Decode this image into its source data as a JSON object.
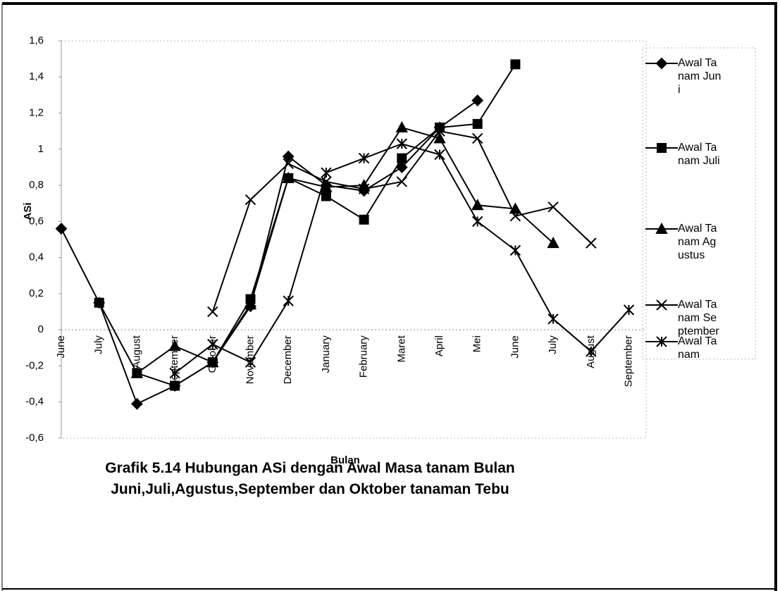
{
  "chart_data": {
    "type": "line",
    "y_label": "ASi",
    "x_label": "Bulan",
    "caption": "Grafik 5.14 Hubungan ASi dengan Awal Masa tanam Bulan Juni,Juli,Agustus,September dan Oktober tanaman Tebu",
    "categories": [
      "June",
      "July",
      "August",
      "September",
      "October",
      "November",
      "December",
      "January",
      "February",
      "Maret",
      "April",
      "Mei",
      "June",
      "July",
      "August",
      "September"
    ],
    "series": [
      {
        "name": "Awal Tanam Juni",
        "color": "#000000",
        "marker": "diamond",
        "values": [
          0.56,
          0.15,
          -0.41,
          -0.31,
          -0.18,
          0.13,
          0.96,
          0.8,
          0.77,
          0.9,
          1.12,
          1.27,
          null,
          null,
          null,
          null
        ]
      },
      {
        "name": "Awal Tanam Juli",
        "color": "#000000",
        "marker": "square",
        "values": [
          null,
          0.15,
          -0.24,
          -0.31,
          -0.18,
          0.17,
          0.84,
          0.74,
          0.61,
          0.95,
          1.12,
          1.14,
          1.47,
          null,
          null,
          null
        ]
      },
      {
        "name": "Awal Tanam Agustus",
        "color": "#000000",
        "marker": "triangle",
        "values": [
          null,
          null,
          -0.24,
          -0.09,
          -0.18,
          0.14,
          0.84,
          0.79,
          0.8,
          1.12,
          1.06,
          0.69,
          0.67,
          0.48,
          null,
          null
        ]
      },
      {
        "name": "Awal Tanam September",
        "color": "#000000",
        "marker": "x",
        "values": [
          null,
          null,
          null,
          null,
          0.1,
          0.72,
          0.92,
          0.82,
          0.78,
          0.82,
          1.1,
          1.06,
          0.63,
          0.68,
          0.48,
          null
        ]
      },
      {
        "name": "Awal Tanam",
        "color": "#000000",
        "marker": "star",
        "values": [
          null,
          null,
          null,
          -0.24,
          -0.08,
          -0.18,
          0.16,
          0.87,
          0.95,
          1.03,
          0.97,
          0.6,
          0.44,
          0.06,
          -0.12,
          0.11
        ]
      }
    ],
    "ylim": [
      -0.6,
      1.6
    ],
    "yticks": [
      {
        "value": -0.6,
        "label": "-0,6"
      },
      {
        "value": -0.4,
        "label": "-0,4"
      },
      {
        "value": -0.2,
        "label": "-0,2"
      },
      0,
      {
        "value": 0.2,
        "label": "0,2"
      },
      {
        "value": 0.4,
        "label": "0,4"
      },
      {
        "value": 0.6,
        "label": "0,6"
      },
      {
        "value": 0.8,
        "label": "0,8"
      },
      1,
      {
        "value": 1.2,
        "label": "1,2"
      },
      {
        "value": 1.4,
        "label": "1,4"
      },
      {
        "value": 1.6,
        "label": "1,6"
      }
    ],
    "grid": false
  }
}
